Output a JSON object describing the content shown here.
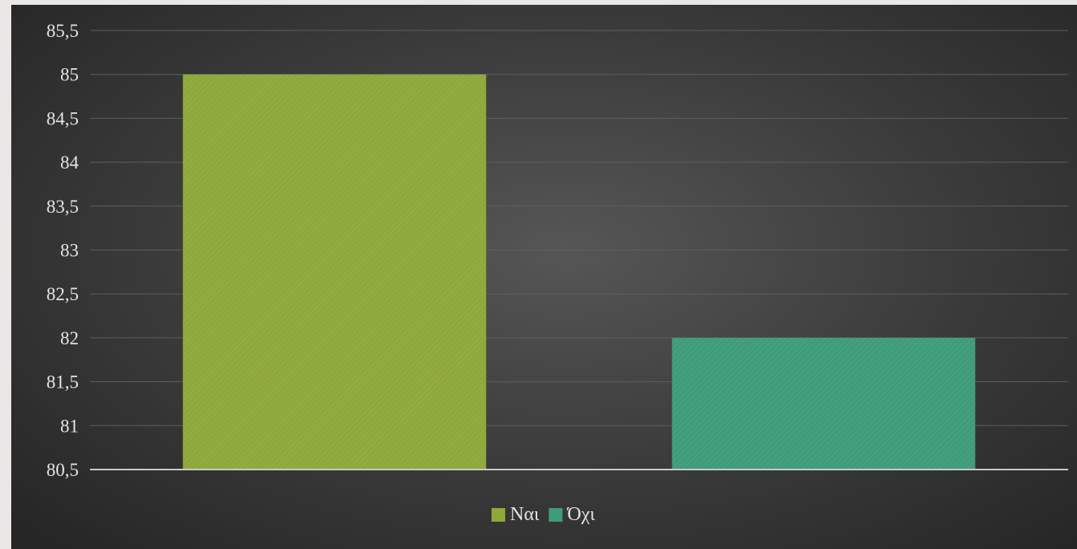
{
  "chart_data": {
    "type": "bar",
    "categories": [
      "Ναι",
      "Όχι"
    ],
    "values": [
      85,
      82
    ],
    "colors": [
      "#8fa83c",
      "#3f9c78"
    ],
    "ylim": [
      80.5,
      85.5
    ],
    "yticks": [
      "80,5",
      "81",
      "81,5",
      "82",
      "82,5",
      "83",
      "83,5",
      "84",
      "84,5",
      "85",
      "85,5"
    ],
    "grid": true,
    "legend_position": "bottom",
    "title": "",
    "xlabel": "",
    "ylabel": ""
  }
}
